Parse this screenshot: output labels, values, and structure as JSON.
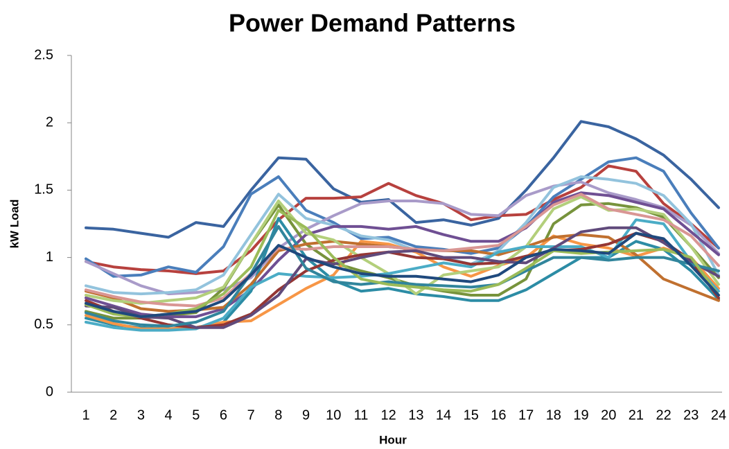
{
  "chart_data": {
    "type": "line",
    "title": "Power Demand Patterns",
    "x_label": "Hour",
    "y_label": "kW Load",
    "categories": [
      "1",
      "2",
      "3",
      "4",
      "5",
      "6",
      "7",
      "8",
      "9",
      "10",
      "11",
      "12",
      "13",
      "14",
      "15",
      "16",
      "17",
      "18",
      "19",
      "20",
      "21",
      "22",
      "23",
      "24"
    ],
    "ylim": [
      0,
      2.5
    ],
    "yticks": [
      0,
      0.5,
      1,
      1.5,
      2,
      2.5
    ],
    "grid": false,
    "series": [
      {
        "color": "#3a64a0",
        "values": [
          1.22,
          1.21,
          1.18,
          1.15,
          1.26,
          1.23,
          1.5,
          1.74,
          1.73,
          1.51,
          1.41,
          1.43,
          1.26,
          1.28,
          1.24,
          1.29,
          1.5,
          1.74,
          2.01,
          1.97,
          1.88,
          1.76,
          1.58,
          1.37
        ]
      },
      {
        "color": "#b7413e",
        "values": [
          0.97,
          0.93,
          0.91,
          0.9,
          0.88,
          0.9,
          1.05,
          1.28,
          1.44,
          1.44,
          1.45,
          1.55,
          1.46,
          1.4,
          1.28,
          1.31,
          1.32,
          1.43,
          1.52,
          1.68,
          1.64,
          1.4,
          1.25,
          1.07
        ]
      },
      {
        "color": "#4a7ebb",
        "values": [
          0.99,
          0.86,
          0.87,
          0.93,
          0.89,
          1.08,
          1.47,
          1.6,
          1.35,
          1.26,
          1.14,
          1.15,
          1.08,
          1.06,
          1.03,
          1.07,
          1.23,
          1.45,
          1.58,
          1.71,
          1.74,
          1.64,
          1.33,
          1.07
        ]
      },
      {
        "color": "#a99bc9",
        "values": [
          0.97,
          0.88,
          0.79,
          0.73,
          0.74,
          0.76,
          0.85,
          1.07,
          1.21,
          1.31,
          1.4,
          1.42,
          1.42,
          1.4,
          1.32,
          1.31,
          1.46,
          1.53,
          1.56,
          1.48,
          1.43,
          1.37,
          1.24,
          1.03
        ]
      },
      {
        "color": "#93c3dd",
        "values": [
          0.79,
          0.74,
          0.73,
          0.74,
          0.76,
          0.87,
          1.17,
          1.47,
          1.29,
          1.24,
          1.16,
          1.13,
          1.05,
          1.0,
          0.95,
          1.05,
          1.26,
          1.52,
          1.6,
          1.58,
          1.55,
          1.46,
          1.25,
          0.87
        ]
      },
      {
        "color": "#77933c",
        "values": [
          0.6,
          0.55,
          0.55,
          0.57,
          0.59,
          0.77,
          1.1,
          1.39,
          1.1,
          0.96,
          0.9,
          0.85,
          0.79,
          0.75,
          0.72,
          0.72,
          0.84,
          1.25,
          1.39,
          1.4,
          1.37,
          1.3,
          1.08,
          0.85
        ]
      },
      {
        "color": "#6f4f93",
        "values": [
          0.7,
          0.64,
          0.58,
          0.56,
          0.56,
          0.62,
          0.76,
          0.98,
          1.17,
          1.23,
          1.23,
          1.21,
          1.23,
          1.17,
          1.12,
          1.12,
          1.22,
          1.41,
          1.48,
          1.46,
          1.41,
          1.36,
          1.19,
          1.02
        ]
      },
      {
        "color": "#2c8ca5",
        "values": [
          0.55,
          0.5,
          0.48,
          0.47,
          0.48,
          0.52,
          0.75,
          1.29,
          1.0,
          0.83,
          0.75,
          0.77,
          0.73,
          0.71,
          0.68,
          0.68,
          0.76,
          0.88,
          1.0,
          1.0,
          1.12,
          1.06,
          0.9,
          0.69
        ]
      },
      {
        "color": "#f79646",
        "values": [
          0.57,
          0.51,
          0.47,
          0.47,
          0.48,
          0.52,
          0.53,
          0.65,
          0.77,
          0.87,
          1.12,
          1.1,
          1.04,
          0.93,
          0.86,
          0.94,
          1.0,
          1.16,
          1.1,
          1.07,
          1.01,
          1.07,
          1.0,
          0.77
        ]
      },
      {
        "color": "#c0702f",
        "values": [
          0.75,
          0.7,
          0.62,
          0.6,
          0.61,
          0.63,
          0.8,
          1.05,
          1.1,
          1.12,
          1.1,
          1.08,
          1.06,
          1.05,
          1.05,
          1.02,
          1.08,
          1.15,
          1.17,
          1.15,
          1.02,
          0.84,
          0.76,
          0.68
        ]
      },
      {
        "color": "#b3cf7b",
        "values": [
          0.72,
          0.68,
          0.66,
          0.68,
          0.7,
          0.78,
          1.1,
          1.42,
          1.18,
          1.13,
          1.0,
          0.88,
          0.73,
          0.87,
          0.9,
          0.93,
          1.08,
          1.36,
          1.45,
          1.35,
          1.36,
          1.32,
          1.08,
          0.8
        ]
      },
      {
        "color": "#d99694",
        "values": [
          0.76,
          0.71,
          0.67,
          0.65,
          0.64,
          0.7,
          0.88,
          1.07,
          1.06,
          1.08,
          1.08,
          1.08,
          1.06,
          1.05,
          1.07,
          1.09,
          1.23,
          1.39,
          1.47,
          1.36,
          1.32,
          1.28,
          1.16,
          0.94
        ]
      },
      {
        "color": "#4bacc6",
        "values": [
          0.52,
          0.48,
          0.46,
          0.46,
          0.47,
          0.55,
          0.78,
          0.88,
          0.86,
          0.85,
          0.86,
          0.88,
          0.92,
          0.96,
          0.93,
          1.04,
          1.08,
          1.08,
          1.08,
          1.0,
          1.28,
          1.25,
          0.97,
          0.75
        ]
      },
      {
        "color": "#943634",
        "values": [
          0.68,
          0.6,
          0.55,
          0.5,
          0.48,
          0.5,
          0.58,
          0.76,
          0.9,
          0.98,
          1.02,
          1.04,
          1.0,
          0.99,
          0.95,
          0.96,
          1.01,
          1.05,
          1.06,
          1.1,
          1.18,
          1.12,
          0.98,
          0.7
        ]
      },
      {
        "color": "#604a7b",
        "values": [
          0.64,
          0.63,
          0.56,
          0.55,
          0.48,
          0.48,
          0.57,
          0.72,
          0.99,
          0.95,
          1.0,
          1.04,
          1.05,
          1.0,
          1.0,
          0.97,
          0.96,
          1.07,
          1.19,
          1.22,
          1.22,
          1.11,
          0.97,
          0.86
        ]
      },
      {
        "color": "#31859c",
        "values": [
          0.59,
          0.53,
          0.5,
          0.49,
          0.52,
          0.6,
          0.88,
          1.23,
          0.92,
          0.82,
          0.8,
          0.82,
          0.8,
          0.79,
          0.78,
          0.8,
          0.9,
          1.0,
          1.0,
          0.98,
          1.0,
          1.0,
          0.95,
          0.9
        ]
      },
      {
        "color": "#9bbb59",
        "values": [
          0.65,
          0.58,
          0.56,
          0.58,
          0.62,
          0.73,
          0.93,
          1.35,
          1.22,
          1.0,
          0.84,
          0.8,
          0.78,
          0.76,
          0.75,
          0.8,
          0.92,
          1.05,
          1.03,
          1.04,
          1.05,
          1.06,
          1.0,
          0.72
        ]
      },
      {
        "color": "#1f497d",
        "values": [
          0.66,
          0.6,
          0.56,
          0.58,
          0.6,
          0.68,
          0.87,
          1.09,
          1.0,
          0.93,
          0.88,
          0.86,
          0.86,
          0.84,
          0.82,
          0.87,
          1.0,
          1.06,
          1.05,
          1.03,
          1.18,
          1.14,
          0.94,
          0.72
        ]
      }
    ]
  }
}
